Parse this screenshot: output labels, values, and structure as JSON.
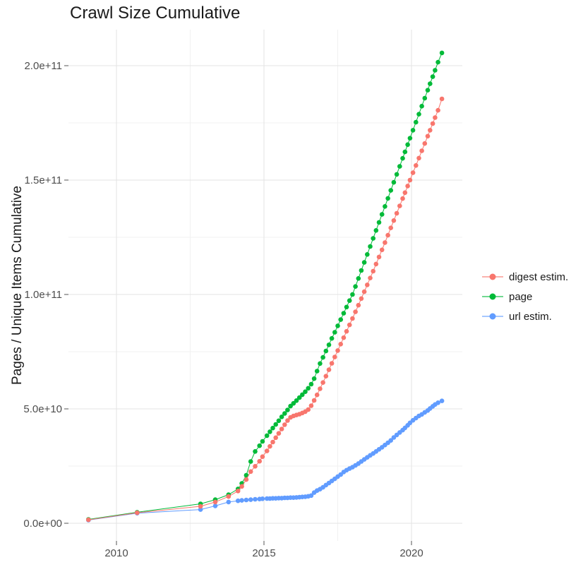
{
  "figure": {
    "background": "#ffffff"
  },
  "colors": {
    "major_grid": "#e3e3e3",
    "minor_grid": "#f1f1f1",
    "tick": "#555555",
    "axis_text": "#4d4d4d",
    "title_text": "#1a1a1a",
    "digest": "#F8766D",
    "page": "#00BA38",
    "url": "#619CFF"
  },
  "chart_data": {
    "type": "line",
    "markers": true,
    "title": "Crawl Size Cumulative",
    "xlabel": "",
    "ylabel": "Pages / Unique Items Cumulative",
    "value_unit": "billions of pages (values below are 1e9)",
    "grid": true,
    "legend_position": "right",
    "xlim": [
      2008.45,
      2021.7
    ],
    "ylim": [
      -8,
      216
    ],
    "x_ticks": [
      {
        "value": 2010,
        "label": "2010"
      },
      {
        "value": 2015,
        "label": "2015"
      },
      {
        "value": 2020,
        "label": "2020"
      }
    ],
    "x_minor_ticks": [
      2012.5,
      2017.5
    ],
    "y_ticks": [
      {
        "value": 0,
        "label": "0.0e+00"
      },
      {
        "value": 50,
        "label": "5.0e+10"
      },
      {
        "value": 100,
        "label": "1.0e+11"
      },
      {
        "value": 150,
        "label": "1.5e+11"
      },
      {
        "value": 200,
        "label": "2.0e+11"
      }
    ],
    "y_minor_ticks": [
      25,
      75,
      125,
      175
    ],
    "series": [
      {
        "name": "digest estim.",
        "color": "#F8766D",
        "points": [
          [
            2009.05,
            1.5
          ],
          [
            2010.7,
            4.6
          ],
          [
            2012.85,
            7.4
          ],
          [
            2013.35,
            9.3
          ],
          [
            2013.8,
            11.7
          ],
          [
            2014.12,
            14.1
          ],
          [
            2014.25,
            16.1
          ],
          [
            2014.4,
            19.1
          ],
          [
            2014.55,
            22.6
          ],
          [
            2014.7,
            24.9
          ],
          [
            2014.85,
            27.1
          ],
          [
            2014.95,
            29.1
          ],
          [
            2015.1,
            31.6
          ],
          [
            2015.2,
            33.6
          ],
          [
            2015.3,
            35.5
          ],
          [
            2015.4,
            37.4
          ],
          [
            2015.5,
            39.3
          ],
          [
            2015.6,
            41.2
          ],
          [
            2015.7,
            43.1
          ],
          [
            2015.8,
            44.9
          ],
          [
            2015.9,
            46.3
          ],
          [
            2016.0,
            46.9
          ],
          [
            2016.1,
            47.3
          ],
          [
            2016.2,
            47.7
          ],
          [
            2016.3,
            48.2
          ],
          [
            2016.4,
            48.8
          ],
          [
            2016.5,
            49.7
          ],
          [
            2016.6,
            51.4
          ],
          [
            2016.7,
            53.7
          ],
          [
            2016.8,
            56.1
          ],
          [
            2016.9,
            58.8
          ],
          [
            2017.0,
            61.5
          ],
          [
            2017.1,
            64.3
          ],
          [
            2017.2,
            67.1
          ],
          [
            2017.3,
            69.9
          ],
          [
            2017.4,
            72.7
          ],
          [
            2017.5,
            75.5
          ],
          [
            2017.6,
            78.3
          ],
          [
            2017.7,
            81.1
          ],
          [
            2017.8,
            83.9
          ],
          [
            2017.9,
            86.7
          ],
          [
            2018.0,
            89.5
          ],
          [
            2018.1,
            92.4
          ],
          [
            2018.2,
            95.3
          ],
          [
            2018.3,
            98.2
          ],
          [
            2018.4,
            101.2
          ],
          [
            2018.5,
            104.2
          ],
          [
            2018.6,
            107.2
          ],
          [
            2018.7,
            110.2
          ],
          [
            2018.8,
            113.3
          ],
          [
            2018.9,
            116.4
          ],
          [
            2019.0,
            119.5
          ],
          [
            2019.1,
            122.7
          ],
          [
            2019.2,
            125.9
          ],
          [
            2019.3,
            129.1
          ],
          [
            2019.4,
            132.3
          ],
          [
            2019.5,
            135.5
          ],
          [
            2019.6,
            138.7
          ],
          [
            2019.7,
            141.9
          ],
          [
            2019.78,
            144.5
          ],
          [
            2019.87,
            147.4
          ],
          [
            2019.95,
            150.0
          ],
          [
            2020.05,
            153.2
          ],
          [
            2020.15,
            156.4
          ],
          [
            2020.25,
            159.6
          ],
          [
            2020.35,
            162.8
          ],
          [
            2020.45,
            166.0
          ],
          [
            2020.55,
            169.2
          ],
          [
            2020.63,
            171.8
          ],
          [
            2020.72,
            174.7
          ],
          [
            2020.8,
            177.3
          ],
          [
            2020.9,
            180.5
          ],
          [
            2021.03,
            185.5
          ]
        ]
      },
      {
        "name": "page",
        "color": "#00BA38",
        "points": [
          [
            2009.05,
            1.7
          ],
          [
            2010.7,
            4.8
          ],
          [
            2012.85,
            8.5
          ],
          [
            2013.35,
            10.3
          ],
          [
            2013.8,
            12.5
          ],
          [
            2014.12,
            15.0
          ],
          [
            2014.25,
            17.4
          ],
          [
            2014.4,
            21.0
          ],
          [
            2014.55,
            27.0
          ],
          [
            2014.7,
            31.4
          ],
          [
            2014.85,
            33.9
          ],
          [
            2014.95,
            35.8
          ],
          [
            2015.1,
            38.3
          ],
          [
            2015.2,
            40.0
          ],
          [
            2015.3,
            41.6
          ],
          [
            2015.4,
            43.2
          ],
          [
            2015.5,
            44.8
          ],
          [
            2015.6,
            46.5
          ],
          [
            2015.7,
            48.0
          ],
          [
            2015.8,
            49.5
          ],
          [
            2015.9,
            51.2
          ],
          [
            2016.0,
            52.4
          ],
          [
            2016.1,
            53.6
          ],
          [
            2016.2,
            54.9
          ],
          [
            2016.3,
            56.2
          ],
          [
            2016.4,
            57.5
          ],
          [
            2016.5,
            59.0
          ],
          [
            2016.6,
            60.8
          ],
          [
            2016.7,
            63.2
          ],
          [
            2016.8,
            66.5
          ],
          [
            2016.9,
            69.8
          ],
          [
            2017.0,
            72.5
          ],
          [
            2017.1,
            75.3
          ],
          [
            2017.2,
            78.0
          ],
          [
            2017.3,
            80.8
          ],
          [
            2017.4,
            83.5
          ],
          [
            2017.5,
            86.3
          ],
          [
            2017.6,
            89.0
          ],
          [
            2017.7,
            91.8
          ],
          [
            2017.8,
            94.5
          ],
          [
            2017.9,
            97.3
          ],
          [
            2018.0,
            100.0
          ],
          [
            2018.1,
            103.5
          ],
          [
            2018.2,
            107.0
          ],
          [
            2018.3,
            110.5
          ],
          [
            2018.4,
            114.0
          ],
          [
            2018.5,
            117.5
          ],
          [
            2018.6,
            121.0
          ],
          [
            2018.7,
            124.5
          ],
          [
            2018.8,
            128.0
          ],
          [
            2018.9,
            131.5
          ],
          [
            2019.0,
            135.0
          ],
          [
            2019.1,
            138.5
          ],
          [
            2019.2,
            142.0
          ],
          [
            2019.3,
            145.5
          ],
          [
            2019.4,
            149.0
          ],
          [
            2019.5,
            152.5
          ],
          [
            2019.6,
            156.0
          ],
          [
            2019.7,
            159.5
          ],
          [
            2019.78,
            162.3
          ],
          [
            2019.87,
            165.5
          ],
          [
            2019.95,
            168.3
          ],
          [
            2020.05,
            171.8
          ],
          [
            2020.15,
            175.3
          ],
          [
            2020.25,
            178.8
          ],
          [
            2020.35,
            182.3
          ],
          [
            2020.45,
            185.8
          ],
          [
            2020.55,
            189.3
          ],
          [
            2020.63,
            192.1
          ],
          [
            2020.72,
            195.2
          ],
          [
            2020.8,
            198.0
          ],
          [
            2020.9,
            201.5
          ],
          [
            2021.03,
            205.6
          ]
        ]
      },
      {
        "name": "url estim.",
        "color": "#619CFF",
        "points": [
          [
            2009.05,
            1.4
          ],
          [
            2010.7,
            4.4
          ],
          [
            2012.85,
            6.0
          ],
          [
            2013.35,
            7.6
          ],
          [
            2013.8,
            9.3
          ],
          [
            2014.12,
            9.8
          ],
          [
            2014.25,
            10.0
          ],
          [
            2014.4,
            10.2
          ],
          [
            2014.55,
            10.3
          ],
          [
            2014.7,
            10.5
          ],
          [
            2014.85,
            10.6
          ],
          [
            2014.95,
            10.7
          ],
          [
            2015.1,
            10.8
          ],
          [
            2015.2,
            10.8
          ],
          [
            2015.3,
            10.9
          ],
          [
            2015.4,
            10.9
          ],
          [
            2015.5,
            11.0
          ],
          [
            2015.6,
            11.0
          ],
          [
            2015.7,
            11.1
          ],
          [
            2015.8,
            11.1
          ],
          [
            2015.9,
            11.2
          ],
          [
            2016.0,
            11.2
          ],
          [
            2016.1,
            11.3
          ],
          [
            2016.2,
            11.4
          ],
          [
            2016.3,
            11.5
          ],
          [
            2016.4,
            11.6
          ],
          [
            2016.5,
            11.8
          ],
          [
            2016.6,
            12.1
          ],
          [
            2016.7,
            13.4
          ],
          [
            2016.8,
            14.3
          ],
          [
            2016.9,
            14.9
          ],
          [
            2017.0,
            15.7
          ],
          [
            2017.1,
            16.7
          ],
          [
            2017.2,
            17.6
          ],
          [
            2017.3,
            18.5
          ],
          [
            2017.4,
            19.4
          ],
          [
            2017.5,
            20.4
          ],
          [
            2017.6,
            21.3
          ],
          [
            2017.7,
            22.4
          ],
          [
            2017.8,
            23.2
          ],
          [
            2017.9,
            23.9
          ],
          [
            2018.0,
            24.5
          ],
          [
            2018.1,
            25.3
          ],
          [
            2018.2,
            26.1
          ],
          [
            2018.3,
            27.0
          ],
          [
            2018.4,
            27.9
          ],
          [
            2018.5,
            28.8
          ],
          [
            2018.6,
            29.7
          ],
          [
            2018.7,
            30.5
          ],
          [
            2018.8,
            31.4
          ],
          [
            2018.9,
            32.3
          ],
          [
            2019.0,
            33.2
          ],
          [
            2019.1,
            34.2
          ],
          [
            2019.2,
            35.2
          ],
          [
            2019.3,
            36.2
          ],
          [
            2019.4,
            37.5
          ],
          [
            2019.5,
            38.6
          ],
          [
            2019.6,
            39.7
          ],
          [
            2019.7,
            40.7
          ],
          [
            2019.78,
            41.7
          ],
          [
            2019.87,
            42.8
          ],
          [
            2019.95,
            43.9
          ],
          [
            2020.05,
            45.0
          ],
          [
            2020.15,
            46.0
          ],
          [
            2020.25,
            46.9
          ],
          [
            2020.35,
            47.6
          ],
          [
            2020.45,
            48.5
          ],
          [
            2020.55,
            49.3
          ],
          [
            2020.63,
            50.2
          ],
          [
            2020.72,
            51.1
          ],
          [
            2020.8,
            51.9
          ],
          [
            2020.9,
            52.7
          ],
          [
            2021.03,
            53.5
          ]
        ]
      }
    ]
  }
}
